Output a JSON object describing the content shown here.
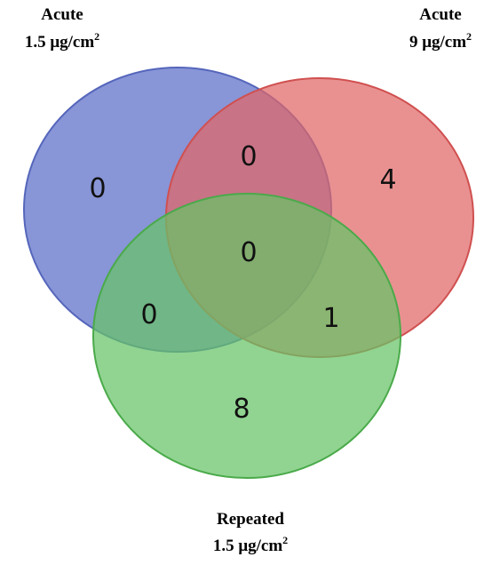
{
  "diagram": {
    "type": "venn-3",
    "sets": [
      {
        "id": "A",
        "line1": "Acute",
        "line2_value": "1.5 ",
        "line2_unit": "μg/cm",
        "line2_exp": "2",
        "fill": "#6677cc",
        "stroke": "#5566bb"
      },
      {
        "id": "B",
        "line1": "Acute",
        "line2_value": "9 ",
        "line2_unit": "μg/cm",
        "line2_exp": "2",
        "fill": "#e06666",
        "stroke": "#d05050"
      },
      {
        "id": "C",
        "line1": "Repeated",
        "line2_value": "1.5 ",
        "line2_unit": "μg/cm",
        "line2_exp": "2",
        "fill": "#66c466",
        "stroke": "#4aaa4a"
      }
    ],
    "regions": {
      "A_only": "0",
      "B_only": "4",
      "C_only": "8",
      "AB_only": "0",
      "AC_only": "0",
      "BC_only": "1",
      "ABC": "0"
    }
  }
}
